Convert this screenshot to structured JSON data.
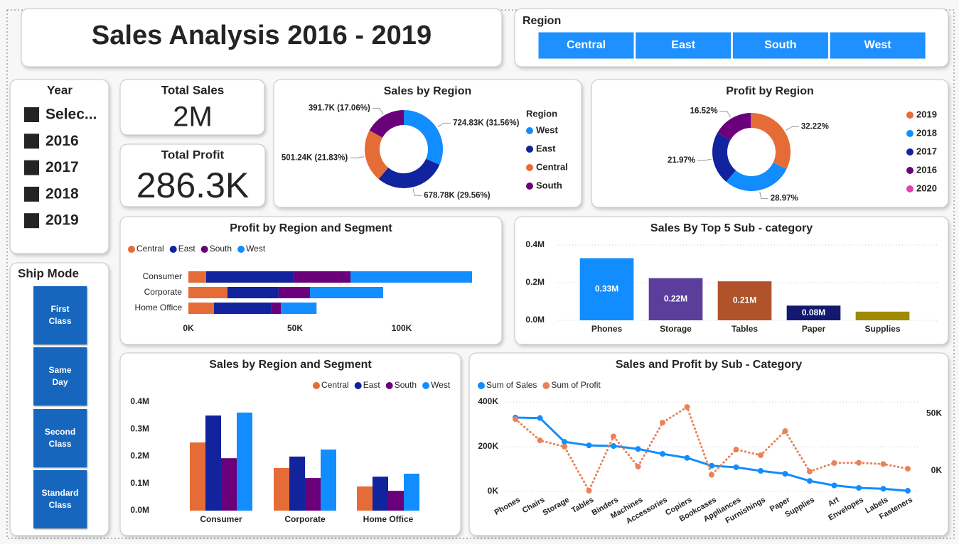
{
  "title": "Sales Analysis 2016 - 2019",
  "region_slicer": {
    "label": "Region",
    "options": [
      "Central",
      "East",
      "South",
      "West"
    ]
  },
  "year_slicer": {
    "label": "Year",
    "options": [
      "Selec...",
      "2016",
      "2017",
      "2018",
      "2019"
    ]
  },
  "ship_mode": {
    "label": "Ship Mode",
    "options": [
      "First Class",
      "Same Day",
      "Second Class",
      "Standard Class"
    ]
  },
  "cards": [
    {
      "label": "Total Sales",
      "value": "2M"
    },
    {
      "label": "Total Profit",
      "value": "286.3K"
    }
  ],
  "chart_data": [
    {
      "type": "pie",
      "title": "Sales by Region",
      "legend_title": "Region",
      "donut": true,
      "categories": [
        "West",
        "East",
        "Central",
        "South"
      ],
      "values": [
        724830,
        678780,
        501240,
        391700
      ],
      "value_labels": [
        "724.83K (31.56%)",
        "678.78K (29.56%)",
        "501.24K (21.83%)",
        "391.7K (17.06%)"
      ],
      "colors": [
        "#118dff",
        "#12239e",
        "#e66c37",
        "#6b007b"
      ]
    },
    {
      "type": "pie",
      "title": "Profit by Region",
      "donut": true,
      "categories": [
        "2019",
        "2018",
        "2017",
        "2016",
        "2020"
      ],
      "values": [
        32.22,
        28.97,
        21.97,
        16.52,
        0.32
      ],
      "value_labels": [
        "32.22%",
        "28.97%",
        "21.97%",
        "16.52%",
        null
      ],
      "colors": [
        "#e66c37",
        "#118dff",
        "#12239e",
        "#6b007b",
        "#e044a7"
      ]
    },
    {
      "type": "bar",
      "orientation": "horizontal",
      "stacked": true,
      "title": "Profit by Region and Segment",
      "categories": [
        "Consumer",
        "Corporate",
        "Home Office"
      ],
      "series": [
        {
          "name": "Central",
          "color": "#e66c37",
          "values": [
            8300,
            18300,
            12000
          ]
        },
        {
          "name": "East",
          "color": "#12239e",
          "values": [
            41000,
            24000,
            26700
          ]
        },
        {
          "name": "South",
          "color": "#6b007b",
          "values": [
            26700,
            14700,
            4700
          ]
        },
        {
          "name": "West",
          "color": "#118dff",
          "values": [
            57000,
            34300,
            16700
          ]
        }
      ],
      "xlim": [
        0,
        140000
      ],
      "xticks": [
        {
          "value": 0,
          "label": "0K"
        },
        {
          "value": 50000,
          "label": "50K"
        },
        {
          "value": 100000,
          "label": "100K"
        }
      ],
      "grid": false,
      "legend": "top-left"
    },
    {
      "type": "bar",
      "title": "Sales By Top 5 Sub - category",
      "categories": [
        "Phones",
        "Storage",
        "Tables",
        "Paper",
        "Supplies"
      ],
      "values": [
        330000,
        224000,
        207000,
        78000,
        46000
      ],
      "value_labels": [
        "0.33M",
        "0.22M",
        "0.21M",
        "0.08M",
        null
      ],
      "colors": [
        "#118dff",
        "#5b3e9b",
        "#b0532a",
        "#12196e",
        "#9f8a00"
      ],
      "ylim": [
        0,
        400000
      ],
      "yticks": [
        {
          "value": 0,
          "label": "0.0M"
        },
        {
          "value": 200000,
          "label": "0.2M"
        },
        {
          "value": 400000,
          "label": "0.4M"
        }
      ],
      "grid": true
    },
    {
      "type": "bar",
      "stacked": false,
      "title": "Sales by Region and Segment",
      "categories": [
        "Consumer",
        "Corporate",
        "Home Office"
      ],
      "series": [
        {
          "name": "Central",
          "color": "#e66c37",
          "values": [
            251000,
            157000,
            89000
          ]
        },
        {
          "name": "East",
          "color": "#12239e",
          "values": [
            350000,
            199000,
            125000
          ]
        },
        {
          "name": "South",
          "color": "#6b007b",
          "values": [
            193000,
            120000,
            73000
          ]
        },
        {
          "name": "West",
          "color": "#118dff",
          "values": [
            361000,
            225000,
            136000
          ]
        }
      ],
      "ylim": [
        0,
        400000
      ],
      "yticks": [
        {
          "value": 0,
          "label": "0.0M"
        },
        {
          "value": 100000,
          "label": "0.1M"
        },
        {
          "value": 200000,
          "label": "0.2M"
        },
        {
          "value": 300000,
          "label": "0.3M"
        },
        {
          "value": 400000,
          "label": "0.4M"
        }
      ],
      "grid": false,
      "legend": "top-right"
    },
    {
      "type": "line",
      "title": "Sales and Profit by Sub - Category",
      "categories": [
        "Phones",
        "Chairs",
        "Storage",
        "Tables",
        "Binders",
        "Machines",
        "Accessories",
        "Copiers",
        "Bookcases",
        "Appliances",
        "Furnishings",
        "Paper",
        "Supplies",
        "Art",
        "Envelopes",
        "Labels",
        "Fasteners"
      ],
      "series": [
        {
          "name": "Sum of Sales",
          "color": "#118dff",
          "style": "solid",
          "values": [
            330000,
            328000,
            222000,
            206000,
            203000,
            190000,
            168000,
            150000,
            115000,
            108000,
            92000,
            79000,
            47000,
            27000,
            16000,
            12000,
            3000
          ]
        },
        {
          "name": "Sum of Profit",
          "color": "#e8825a",
          "style": "dotted",
          "axis": "y2",
          "values": [
            45000,
            26500,
            21000,
            -17300,
            30000,
            3700,
            42000,
            55600,
            -3500,
            18500,
            13600,
            34600,
            -600,
            6800,
            7000,
            5900,
            1800
          ]
        }
      ],
      "ylim": [
        0,
        400000
      ],
      "yticks": [
        {
          "value": 0,
          "label": "0K"
        },
        {
          "value": 200000,
          "label": "200K"
        },
        {
          "value": 400000,
          "label": "400K"
        }
      ],
      "y2lim": [
        -18000,
        60000
      ],
      "y2ticks": [
        {
          "value": 0,
          "label": "0K"
        },
        {
          "value": 50000,
          "label": "50K"
        }
      ],
      "grid": true,
      "legend": "top-left"
    }
  ]
}
